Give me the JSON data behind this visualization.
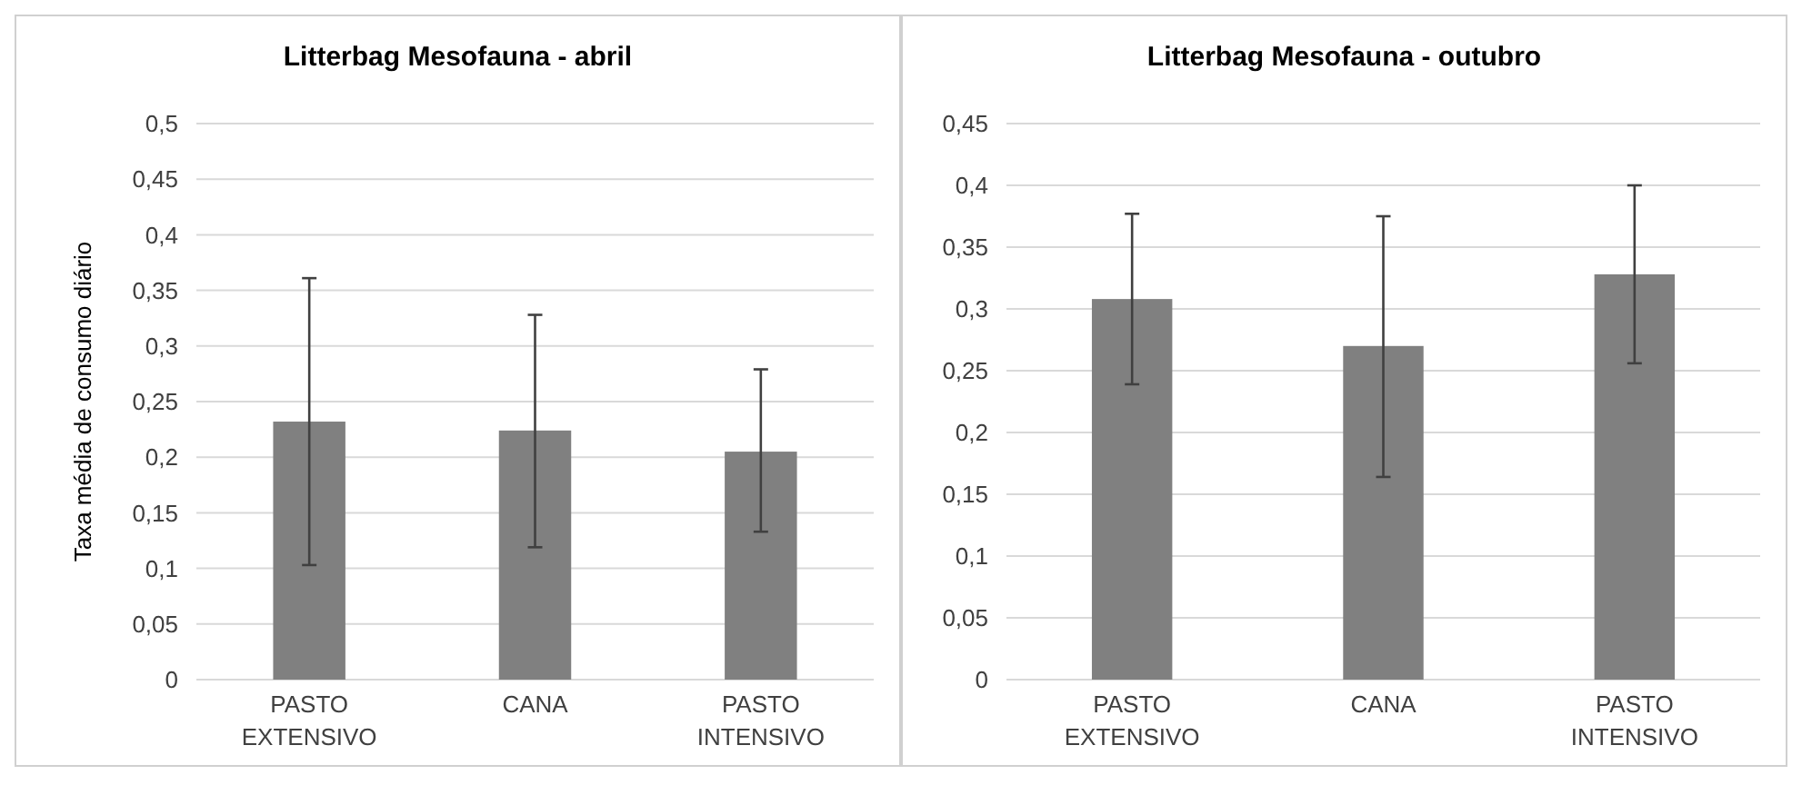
{
  "chart_data": [
    {
      "type": "bar",
      "title": "Litterbag Mesofauna - abril",
      "ylabel": "Taxa média de consumo diário",
      "categories": [
        "PASTO EXTENSIVO",
        "CANA",
        "PASTO INTENSIVO"
      ],
      "values": [
        0.232,
        0.224,
        0.205
      ],
      "color": "#808080",
      "errors": [
        [
          0.103,
          0.361
        ],
        [
          0.119,
          0.328
        ],
        [
          0.133,
          0.279
        ]
      ],
      "ylim": [
        0,
        0.5
      ],
      "yticks": [
        0,
        {
          "value": 0.05,
          "label": "0,05"
        },
        {
          "value": 0.1,
          "label": "0,1"
        },
        {
          "value": 0.15,
          "label": "0,15"
        },
        {
          "value": 0.2,
          "label": "0,2"
        },
        {
          "value": 0.25,
          "label": "0,25"
        },
        {
          "value": 0.3,
          "label": "0,3"
        },
        {
          "value": 0.35,
          "label": "0,35"
        },
        {
          "value": 0.4,
          "label": "0,4"
        },
        {
          "value": 0.45,
          "label": "0,45"
        },
        {
          "value": 0.5,
          "label": "0,5"
        }
      ],
      "grid": "y"
    },
    {
      "type": "bar",
      "title": "Litterbag Mesofauna - outubro",
      "categories": [
        "PASTO EXTENSIVO",
        "CANA",
        "PASTO INTENSIVO"
      ],
      "values": [
        0.308,
        0.27,
        0.328
      ],
      "color": "#808080",
      "errors": [
        [
          0.239,
          0.377
        ],
        [
          0.164,
          0.375
        ],
        [
          0.256,
          0.4
        ]
      ],
      "ylim": [
        0,
        0.45
      ],
      "yticks": [
        0,
        {
          "value": 0.05,
          "label": "0,05"
        },
        {
          "value": 0.1,
          "label": "0,1"
        },
        {
          "value": 0.15,
          "label": "0,15"
        },
        {
          "value": 0.2,
          "label": "0,2"
        },
        {
          "value": 0.25,
          "label": "0,25"
        },
        {
          "value": 0.3,
          "label": "0,3"
        },
        {
          "value": 0.35,
          "label": "0,35"
        },
        {
          "value": 0.4,
          "label": "0,4"
        },
        {
          "value": 0.45,
          "label": "0,45"
        }
      ],
      "grid": "y"
    }
  ]
}
